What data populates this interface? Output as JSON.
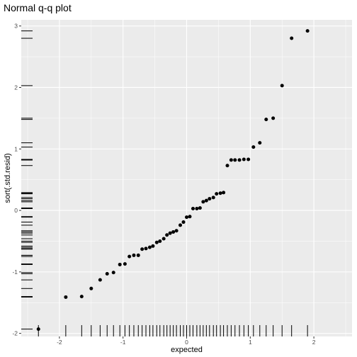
{
  "chart_data": {
    "type": "scatter",
    "title": "Normal q-q plot",
    "xlabel": "expected",
    "ylabel": "sort(.std.resid)",
    "xlim": [
      -2.6,
      2.6
    ],
    "ylim": [
      -2.05,
      3.1
    ],
    "x_ticks": [
      -2,
      -1,
      0,
      1,
      2
    ],
    "y_ticks": [
      -2,
      -1,
      0,
      1,
      2,
      3
    ],
    "x_tick_labels": [
      "-2",
      "-1",
      "0",
      "1",
      "2"
    ],
    "y_tick_labels": [
      "-2",
      "-1",
      "0",
      "1",
      "2",
      "3"
    ],
    "grid": true,
    "rugs": [
      "bottom",
      "left"
    ],
    "colors": {
      "panel": "#ebebeb",
      "grid_major": "#ffffff",
      "point": "#000000",
      "rug": "#000000"
    },
    "points": [
      {
        "x": -2.33,
        "y": -1.93
      },
      {
        "x": -1.9,
        "y": -1.41
      },
      {
        "x": -1.65,
        "y": -1.4
      },
      {
        "x": -1.5,
        "y": -1.27
      },
      {
        "x": -1.36,
        "y": -1.13
      },
      {
        "x": -1.25,
        "y": -1.03
      },
      {
        "x": -1.15,
        "y": -1.01
      },
      {
        "x": -1.05,
        "y": -0.88
      },
      {
        "x": -0.97,
        "y": -0.87
      },
      {
        "x": -0.9,
        "y": -0.75
      },
      {
        "x": -0.83,
        "y": -0.73
      },
      {
        "x": -0.76,
        "y": -0.73
      },
      {
        "x": -0.7,
        "y": -0.63
      },
      {
        "x": -0.64,
        "y": -0.62
      },
      {
        "x": -0.58,
        "y": -0.6
      },
      {
        "x": -0.53,
        "y": -0.58
      },
      {
        "x": -0.47,
        "y": -0.52
      },
      {
        "x": -0.42,
        "y": -0.5
      },
      {
        "x": -0.36,
        "y": -0.46
      },
      {
        "x": -0.31,
        "y": -0.4
      },
      {
        "x": -0.26,
        "y": -0.37
      },
      {
        "x": -0.21,
        "y": -0.35
      },
      {
        "x": -0.16,
        "y": -0.33
      },
      {
        "x": -0.1,
        "y": -0.24
      },
      {
        "x": -0.05,
        "y": -0.19
      },
      {
        "x": 0.0,
        "y": -0.11
      },
      {
        "x": 0.05,
        "y": -0.1
      },
      {
        "x": 0.1,
        "y": 0.03
      },
      {
        "x": 0.16,
        "y": 0.03
      },
      {
        "x": 0.21,
        "y": 0.04
      },
      {
        "x": 0.26,
        "y": 0.14
      },
      {
        "x": 0.31,
        "y": 0.16
      },
      {
        "x": 0.36,
        "y": 0.19
      },
      {
        "x": 0.42,
        "y": 0.21
      },
      {
        "x": 0.47,
        "y": 0.27
      },
      {
        "x": 0.53,
        "y": 0.28
      },
      {
        "x": 0.58,
        "y": 0.29
      },
      {
        "x": 0.64,
        "y": 0.73
      },
      {
        "x": 0.7,
        "y": 0.82
      },
      {
        "x": 0.76,
        "y": 0.82
      },
      {
        "x": 0.83,
        "y": 0.82
      },
      {
        "x": 0.9,
        "y": 0.83
      },
      {
        "x": 0.97,
        "y": 0.83
      },
      {
        "x": 1.05,
        "y": 1.03
      },
      {
        "x": 1.15,
        "y": 1.1
      },
      {
        "x": 1.25,
        "y": 1.48
      },
      {
        "x": 1.36,
        "y": 1.5
      },
      {
        "x": 1.5,
        "y": 2.03
      },
      {
        "x": 1.65,
        "y": 2.8
      },
      {
        "x": 1.9,
        "y": 2.92
      }
    ]
  }
}
